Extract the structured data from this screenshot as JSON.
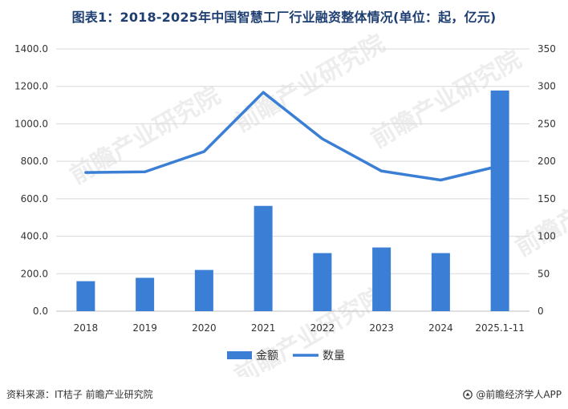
{
  "title": "图表1：2018-2025年中国智慧工厂行业融资整体情况(单位：起，亿元)",
  "source": "资料来源：IT桔子 前瞻产业研究院",
  "brand": "@前瞻经济学人APP",
  "watermark": "前瞻产业研究院",
  "colors": {
    "bar": "#3a7fd5",
    "line": "#3a7fd5",
    "grid": "#d9d9d9",
    "text": "#333333",
    "title": "#1f3f72"
  },
  "chart_data": {
    "type": "bar",
    "categories": [
      "2018",
      "2019",
      "2020",
      "2021",
      "2022",
      "2023",
      "2024",
      "2025.1-11"
    ],
    "series": [
      {
        "name": "金额",
        "type": "bar",
        "axis": "left",
        "values": [
          160,
          178,
          220,
          562,
          310,
          340,
          310,
          1178
        ]
      },
      {
        "name": "数量",
        "type": "line",
        "axis": "right",
        "values": [
          185,
          186,
          213,
          292,
          230,
          187,
          175,
          194
        ]
      }
    ],
    "left_axis": {
      "ylim": [
        0,
        1400
      ],
      "ticks": [
        "0.0",
        "200.0",
        "400.0",
        "600.0",
        "800.0",
        "1000.0",
        "1200.0",
        "1400.0"
      ]
    },
    "right_axis": {
      "ylim": [
        0,
        350
      ],
      "ticks": [
        "0",
        "50",
        "100",
        "150",
        "200",
        "250",
        "300",
        "350"
      ]
    },
    "grid": true,
    "legend_position": "bottom-center"
  }
}
